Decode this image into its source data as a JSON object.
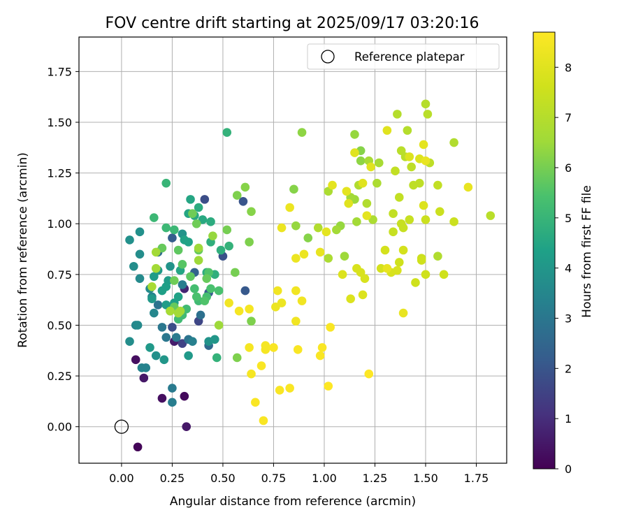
{
  "chart_data": {
    "type": "scatter",
    "title": "FOV centre drift starting at 2025/09/17 03:20:16",
    "xlabel": "Angular distance from reference (arcmin)",
    "ylabel": "Rotation from reference (arcmin)",
    "xlim": [
      -0.21,
      1.9
    ],
    "ylim": [
      -0.18,
      1.92
    ],
    "xticks": [
      0.0,
      0.25,
      0.5,
      0.75,
      1.0,
      1.25,
      1.5,
      1.75
    ],
    "xtick_labels": [
      "0.00",
      "0.25",
      "0.50",
      "0.75",
      "1.00",
      "1.25",
      "1.50",
      "1.75"
    ],
    "yticks": [
      0.0,
      0.25,
      0.5,
      0.75,
      1.0,
      1.25,
      1.5,
      1.75
    ],
    "ytick_labels": [
      "0.00",
      "0.25",
      "0.50",
      "0.75",
      "1.00",
      "1.25",
      "1.50",
      "1.75"
    ],
    "grid": true,
    "legend": {
      "position": "top-right",
      "entries": [
        "Reference platepar"
      ]
    },
    "reference_point": {
      "x": 0.0,
      "y": 0.0,
      "label": "Reference platepar"
    },
    "colorbar": {
      "label": "Hours from first FF file",
      "range": [
        0,
        8.7
      ],
      "ticks": [
        0,
        1,
        2,
        3,
        4,
        5,
        6,
        7,
        8
      ],
      "tick_labels": [
        "0",
        "1",
        "2",
        "3",
        "4",
        "5",
        "6",
        "7",
        "8"
      ],
      "colormap": "viridis"
    },
    "points_columns": [
      "x",
      "y",
      "hours"
    ],
    "points": [
      [
        0.08,
        -0.1,
        0.1
      ],
      [
        0.07,
        0.33,
        0.3
      ],
      [
        0.11,
        0.24,
        0.5
      ],
      [
        0.2,
        0.14,
        0.3
      ],
      [
        0.31,
        0.15,
        0.2
      ],
      [
        0.32,
        0.0,
        0.5
      ],
      [
        0.26,
        0.42,
        0.6
      ],
      [
        0.31,
        0.68,
        0.8
      ],
      [
        0.3,
        0.41,
        1.5
      ],
      [
        0.38,
        0.52,
        1.6
      ],
      [
        0.25,
        0.49,
        1.8
      ],
      [
        0.41,
        1.12,
        1.8
      ],
      [
        0.5,
        0.84,
        1.9
      ],
      [
        0.6,
        1.11,
        2.0
      ],
      [
        0.61,
        0.67,
        2.1
      ],
      [
        0.43,
        0.66,
        2.2
      ],
      [
        0.25,
        0.93,
        2.2
      ],
      [
        0.36,
        0.76,
        2.4
      ],
      [
        0.18,
        0.86,
        2.7
      ],
      [
        0.43,
        0.4,
        2.6
      ],
      [
        0.39,
        0.55,
        2.8
      ],
      [
        0.33,
        0.43,
        2.9
      ],
      [
        0.18,
        0.6,
        2.9
      ],
      [
        0.2,
        0.49,
        3.0
      ],
      [
        0.22,
        0.44,
        3.0
      ],
      [
        0.27,
        0.44,
        3.1
      ],
      [
        0.25,
        0.19,
        3.1
      ],
      [
        0.25,
        0.12,
        3.2
      ],
      [
        0.35,
        0.42,
        3.3
      ],
      [
        0.3,
        0.7,
        3.2
      ],
      [
        0.1,
        0.29,
        3.4
      ],
      [
        0.12,
        0.29,
        3.4
      ],
      [
        0.15,
        0.64,
        3.4
      ],
      [
        0.09,
        0.73,
        3.6
      ],
      [
        0.14,
        0.68,
        3.6
      ],
      [
        0.16,
        0.56,
        3.5
      ],
      [
        0.07,
        0.5,
        3.5
      ],
      [
        0.08,
        0.5,
        3.6
      ],
      [
        0.04,
        0.42,
        3.7
      ],
      [
        0.06,
        0.79,
        3.7
      ],
      [
        0.09,
        0.85,
        3.7
      ],
      [
        0.04,
        0.92,
        3.8
      ],
      [
        0.09,
        0.96,
        3.8
      ],
      [
        0.17,
        0.35,
        3.8
      ],
      [
        0.21,
        0.33,
        4.0
      ],
      [
        0.24,
        0.79,
        3.9
      ],
      [
        0.3,
        0.95,
        3.9
      ],
      [
        0.43,
        0.42,
        3.9
      ],
      [
        0.46,
        0.43,
        4.0
      ],
      [
        0.33,
        0.35,
        4.1
      ],
      [
        0.14,
        0.39,
        4.1
      ],
      [
        0.18,
        0.77,
        4.1
      ],
      [
        0.16,
        0.74,
        4.2
      ],
      [
        0.15,
        0.63,
        4.1
      ],
      [
        0.22,
        0.6,
        4.2
      ],
      [
        0.23,
        0.72,
        4.2
      ],
      [
        0.2,
        0.67,
        4.3
      ],
      [
        0.22,
        0.69,
        4.3
      ],
      [
        0.24,
        0.57,
        4.3
      ],
      [
        0.26,
        0.61,
        4.3
      ],
      [
        0.28,
        0.64,
        4.4
      ],
      [
        0.31,
        0.92,
        4.4
      ],
      [
        0.33,
        0.91,
        4.4
      ],
      [
        0.29,
        0.77,
        4.5
      ],
      [
        0.34,
        1.12,
        4.5
      ],
      [
        0.33,
        1.05,
        4.5
      ],
      [
        0.36,
        1.04,
        4.6
      ],
      [
        0.4,
        1.02,
        4.6
      ],
      [
        0.38,
        1.08,
        4.7
      ],
      [
        0.44,
        1.01,
        4.7
      ],
      [
        0.42,
        0.76,
        4.7
      ],
      [
        0.46,
        0.75,
        4.8
      ],
      [
        0.44,
        0.91,
        4.8
      ],
      [
        0.49,
        0.87,
        4.8
      ],
      [
        0.53,
        0.89,
        4.9
      ],
      [
        0.47,
        0.34,
        4.9
      ],
      [
        0.52,
        1.45,
        4.9
      ],
      [
        0.22,
        1.2,
        5.0
      ],
      [
        0.16,
        1.03,
        5.1
      ],
      [
        0.22,
        0.98,
        5.1
      ],
      [
        0.26,
        0.97,
        5.1
      ],
      [
        0.3,
        0.55,
        5.2
      ],
      [
        0.32,
        0.58,
        5.2
      ],
      [
        0.28,
        0.53,
        5.2
      ],
      [
        0.36,
        0.68,
        5.3
      ],
      [
        0.38,
        0.62,
        5.2
      ],
      [
        0.42,
        0.64,
        5.3
      ],
      [
        0.44,
        0.68,
        5.4
      ],
      [
        0.48,
        0.67,
        5.4
      ],
      [
        0.37,
        0.64,
        5.4
      ],
      [
        0.41,
        0.62,
        5.5
      ],
      [
        0.43,
        0.76,
        5.5
      ],
      [
        0.3,
        0.8,
        5.6
      ],
      [
        0.28,
        0.87,
        5.7
      ],
      [
        0.34,
        0.74,
        5.7
      ],
      [
        0.38,
        0.87,
        5.8
      ],
      [
        0.42,
        0.73,
        5.8
      ],
      [
        0.26,
        0.72,
        5.9
      ],
      [
        0.2,
        0.88,
        5.8
      ],
      [
        0.26,
        0.59,
        5.8
      ],
      [
        0.35,
        1.05,
        5.9
      ],
      [
        0.37,
        1.0,
        5.9
      ],
      [
        0.52,
        0.97,
        6.0
      ],
      [
        0.56,
        0.76,
        6.0
      ],
      [
        0.57,
        0.34,
        6.1
      ],
      [
        0.64,
        0.52,
        6.1
      ],
      [
        0.63,
        0.91,
        6.1
      ],
      [
        0.57,
        1.14,
        6.1
      ],
      [
        0.61,
        1.18,
        6.2
      ],
      [
        0.64,
        1.06,
        6.2
      ],
      [
        0.85,
        1.17,
        6.2
      ],
      [
        0.89,
        1.45,
        6.3
      ],
      [
        0.92,
        0.93,
        6.2
      ],
      [
        0.86,
        0.99,
        6.4
      ],
      [
        0.45,
        0.94,
        6.4
      ],
      [
        0.48,
        0.5,
        6.5
      ],
      [
        0.38,
        0.82,
        6.5
      ],
      [
        0.38,
        0.88,
        6.5
      ],
      [
        0.28,
        0.56,
        6.6
      ],
      [
        0.29,
        0.57,
        6.6
      ],
      [
        0.17,
        0.86,
        6.6
      ],
      [
        0.17,
        0.78,
        6.6
      ],
      [
        0.15,
        0.69,
        6.7
      ],
      [
        0.24,
        0.57,
        6.7
      ],
      [
        1.18,
        1.36,
        6.2
      ],
      [
        1.18,
        1.31,
        6.3
      ],
      [
        1.15,
        1.44,
        6.4
      ],
      [
        1.08,
        0.99,
        6.4
      ],
      [
        1.1,
        0.84,
        6.5
      ],
      [
        1.15,
        1.12,
        6.5
      ],
      [
        1.06,
        0.97,
        6.6
      ],
      [
        1.13,
        1.13,
        6.6
      ],
      [
        1.16,
        1.01,
        6.6
      ],
      [
        1.22,
        1.31,
        6.7
      ],
      [
        1.27,
        1.3,
        6.7
      ],
      [
        1.24,
        1.02,
        6.8
      ],
      [
        1.26,
        1.2,
        6.8
      ],
      [
        1.02,
        0.83,
        6.8
      ],
      [
        1.02,
        1.16,
        6.8
      ],
      [
        1.56,
        0.84,
        6.9
      ],
      [
        1.64,
        1.4,
        6.9
      ],
      [
        0.97,
        0.98,
        6.9
      ],
      [
        1.21,
        1.1,
        6.9
      ],
      [
        1.17,
        1.19,
        6.9
      ],
      [
        1.41,
        1.46,
        7.0
      ],
      [
        1.36,
        1.54,
        7.0
      ],
      [
        1.5,
        1.59,
        7.0
      ],
      [
        1.51,
        1.54,
        7.1
      ],
      [
        1.38,
        1.36,
        7.1
      ],
      [
        1.4,
        1.33,
        7.1
      ],
      [
        1.43,
        1.28,
        7.2
      ],
      [
        1.47,
        1.2,
        7.2
      ],
      [
        1.44,
        1.19,
        7.2
      ],
      [
        1.52,
        1.3,
        7.2
      ],
      [
        1.56,
        1.19,
        7.3
      ],
      [
        1.35,
        1.26,
        7.3
      ],
      [
        1.37,
        1.13,
        7.3
      ],
      [
        1.34,
        1.05,
        7.3
      ],
      [
        1.38,
        1.0,
        7.4
      ],
      [
        1.42,
        1.02,
        7.4
      ],
      [
        1.34,
        0.96,
        7.4
      ],
      [
        1.39,
        0.98,
        7.4
      ],
      [
        1.5,
        1.02,
        7.5
      ],
      [
        1.57,
        1.06,
        7.5
      ],
      [
        1.64,
        1.01,
        7.5
      ],
      [
        1.48,
        0.83,
        7.5
      ],
      [
        1.48,
        0.82,
        7.6
      ],
      [
        1.5,
        0.75,
        7.6
      ],
      [
        1.59,
        0.75,
        7.6
      ],
      [
        1.45,
        0.71,
        7.6
      ],
      [
        1.37,
        0.81,
        7.6
      ],
      [
        1.39,
        0.87,
        7.7
      ],
      [
        1.3,
        0.87,
        7.7
      ],
      [
        1.28,
        0.78,
        7.7
      ],
      [
        1.33,
        0.76,
        7.8
      ],
      [
        1.36,
        0.77,
        7.8
      ],
      [
        1.16,
        0.78,
        7.8
      ],
      [
        1.18,
        0.76,
        7.8
      ],
      [
        1.2,
        0.73,
        7.8
      ],
      [
        1.13,
        0.63,
        7.9
      ],
      [
        1.19,
        0.65,
        7.9
      ],
      [
        1.09,
        0.75,
        7.9
      ],
      [
        1.49,
        1.09,
        7.9
      ],
      [
        1.42,
        1.33,
        7.9
      ],
      [
        1.47,
        1.32,
        7.9
      ],
      [
        1.31,
        1.46,
        8.0
      ],
      [
        1.23,
        1.28,
        8.0
      ],
      [
        1.19,
        1.2,
        8.0
      ],
      [
        1.15,
        1.35,
        8.0
      ],
      [
        1.12,
        1.1,
        8.0
      ],
      [
        1.04,
        1.19,
        8.1
      ],
      [
        1.01,
        0.96,
        8.1
      ],
      [
        1.11,
        1.16,
        8.1
      ],
      [
        1.21,
        1.04,
        8.1
      ],
      [
        1.49,
        1.39,
        8.1
      ],
      [
        1.5,
        1.31,
        8.2
      ],
      [
        1.71,
        1.18,
        8.2
      ],
      [
        1.82,
        1.04,
        7.1
      ],
      [
        1.39,
        0.56,
        8.2
      ],
      [
        1.31,
        0.78,
        8.2
      ],
      [
        0.98,
        0.86,
        8.2
      ],
      [
        0.9,
        0.85,
        8.3
      ],
      [
        0.86,
        0.83,
        8.3
      ],
      [
        0.83,
        1.08,
        8.3
      ],
      [
        0.79,
        0.98,
        8.3
      ],
      [
        0.76,
        0.59,
        8.3
      ],
      [
        0.79,
        0.61,
        8.3
      ],
      [
        0.89,
        0.62,
        8.4
      ],
      [
        0.77,
        0.67,
        8.4
      ],
      [
        0.86,
        0.67,
        8.4
      ],
      [
        0.86,
        0.52,
        8.4
      ],
      [
        0.53,
        0.61,
        8.4
      ],
      [
        0.58,
        0.57,
        8.5
      ],
      [
        0.63,
        0.58,
        8.5
      ],
      [
        0.63,
        0.39,
        8.5
      ],
      [
        0.64,
        0.26,
        8.5
      ],
      [
        0.71,
        0.38,
        8.5
      ],
      [
        0.71,
        0.4,
        8.5
      ],
      [
        0.75,
        0.39,
        8.6
      ],
      [
        0.69,
        0.3,
        8.6
      ],
      [
        0.66,
        0.12,
        8.6
      ],
      [
        0.7,
        0.03,
        8.6
      ],
      [
        0.78,
        0.18,
        8.6
      ],
      [
        0.83,
        0.19,
        8.6
      ],
      [
        0.87,
        0.38,
        8.6
      ],
      [
        0.98,
        0.35,
        8.6
      ],
      [
        0.99,
        0.39,
        8.6
      ],
      [
        1.03,
        0.49,
        8.6
      ],
      [
        1.02,
        0.2,
        8.7
      ],
      [
        1.22,
        0.26,
        8.7
      ]
    ]
  }
}
